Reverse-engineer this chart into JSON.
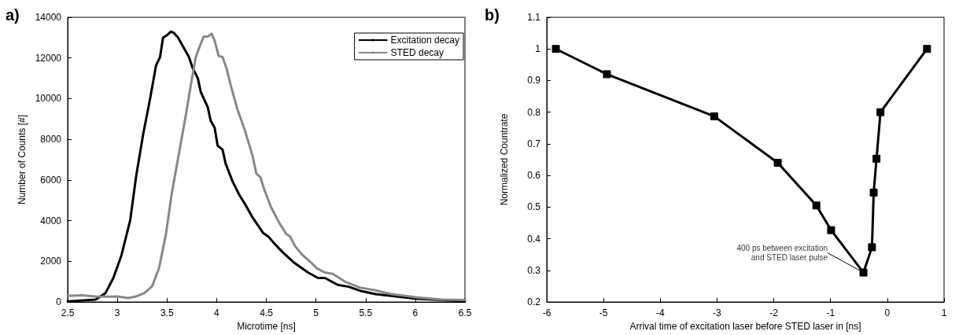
{
  "chart_data": [
    {
      "type": "line",
      "title": "a)",
      "xlabel": "Microtime [ns]",
      "ylabel": "Number of Counts [#]",
      "xlim": [
        2.5,
        6.5
      ],
      "xticks": [
        2.5,
        3,
        3.5,
        4,
        4.5,
        5,
        5.5,
        6,
        6.5
      ],
      "ylim": [
        0,
        14000
      ],
      "yticks": [
        0,
        2000,
        4000,
        6000,
        8000,
        10000,
        12000,
        14000
      ],
      "grid": false,
      "legend": "top right",
      "marker": "none",
      "line_style": "solid",
      "series": [
        {
          "name": "Excitation decay",
          "color": "#000000",
          "x": [
            2.5,
            2.78,
            2.88,
            2.96,
            3.04,
            3.13,
            3.19,
            3.26,
            3.33,
            3.39,
            3.43,
            3.46,
            3.5,
            3.54,
            3.57,
            3.61,
            3.66,
            3.72,
            3.76,
            3.81,
            3.84,
            3.91,
            3.94,
            3.98,
            4.01,
            4.06,
            4.09,
            4.16,
            4.23,
            4.29,
            4.36,
            4.47,
            4.52,
            4.58,
            4.66,
            4.78,
            4.92,
            5.02,
            5.09,
            5.22,
            5.33,
            5.46,
            5.6,
            5.76,
            6.0,
            6.27,
            6.5
          ],
          "values": [
            30,
            120,
            430,
            1180,
            2270,
            4030,
            6200,
            8240,
            10000,
            11630,
            12040,
            12990,
            13120,
            13300,
            13230,
            13010,
            12580,
            12060,
            11490,
            11010,
            10330,
            9590,
            8910,
            8570,
            7690,
            7490,
            6810,
            5930,
            5250,
            4780,
            4170,
            3380,
            3220,
            2880,
            2470,
            1930,
            1450,
            1180,
            1180,
            840,
            750,
            530,
            390,
            300,
            160,
            95,
            30
          ]
        },
        {
          "name": "STED decay",
          "color": "#888888",
          "x": [
            2.5,
            2.64,
            2.78,
            2.91,
            3.0,
            3.11,
            3.18,
            3.27,
            3.35,
            3.42,
            3.49,
            3.55,
            3.62,
            3.69,
            3.75,
            3.79,
            3.83,
            3.87,
            3.91,
            3.95,
            3.98,
            4.02,
            4.06,
            4.1,
            4.14,
            4.21,
            4.28,
            4.36,
            4.4,
            4.44,
            4.48,
            4.55,
            4.63,
            4.7,
            4.74,
            4.79,
            4.86,
            4.94,
            5.01,
            5.09,
            5.17,
            5.3,
            5.44,
            5.6,
            5.76,
            6.0,
            6.27,
            6.5
          ],
          "values": [
            300,
            330,
            270,
            260,
            270,
            190,
            260,
            430,
            770,
            1660,
            3350,
            5390,
            7290,
            9190,
            10950,
            12040,
            12580,
            13050,
            13050,
            13190,
            12850,
            12100,
            12040,
            11490,
            10690,
            9460,
            8510,
            7220,
            6310,
            6140,
            5520,
            4640,
            3890,
            3350,
            3220,
            2740,
            2330,
            1990,
            1650,
            1450,
            1380,
            980,
            710,
            570,
            390,
            230,
            120,
            95
          ]
        }
      ]
    },
    {
      "type": "line",
      "title": "b)",
      "xlabel": "Arrival time of excitation laser before STED laser in [ns]",
      "ylabel": "Normalized Countrate",
      "xlim": [
        -6,
        1
      ],
      "xticks": [
        -6,
        -5,
        -4,
        -3,
        -2,
        -1,
        0,
        1
      ],
      "ylim": [
        0.2,
        1.1
      ],
      "yticks": [
        0.2,
        0.3,
        0.4,
        0.5,
        0.6,
        0.7,
        0.8,
        0.9,
        1,
        1.1
      ],
      "grid": false,
      "marker": "square",
      "line_style": "solid",
      "series": [
        {
          "color": "#000000",
          "x": [
            -5.84,
            -4.94,
            -3.05,
            -1.93,
            -1.25,
            -0.99,
            -0.42,
            -0.27,
            -0.24,
            -0.19,
            -0.12,
            0.7
          ],
          "values": [
            1.0,
            0.92,
            0.787,
            0.64,
            0.505,
            0.427,
            0.293,
            0.373,
            0.546,
            0.653,
            0.8,
            1.0
          ]
        }
      ],
      "annotations": [
        {
          "text": "400 ps between excitation\nand STED laser pulse",
          "x": -0.42,
          "y": 0.293
        }
      ]
    }
  ]
}
